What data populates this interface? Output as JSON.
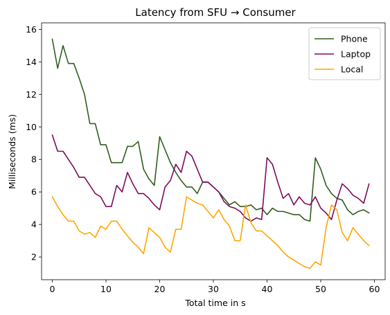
{
  "chart_data": {
    "type": "line",
    "title": "Latency from SFU → Consumer",
    "xlabel": "Total time in s",
    "ylabel": "Milliseconds (ms)",
    "xlim": [
      -2,
      62
    ],
    "ylim": [
      0.6,
      16.4
    ],
    "xticks": [
      0,
      10,
      20,
      30,
      40,
      50,
      60
    ],
    "yticks": [
      2,
      4,
      6,
      8,
      10,
      12,
      14,
      16
    ],
    "grid": false,
    "legend_position": "top-right",
    "x": [
      0,
      1,
      2,
      3,
      4,
      5,
      6,
      7,
      8,
      9,
      10,
      11,
      12,
      13,
      14,
      15,
      16,
      17,
      18,
      19,
      20,
      21,
      22,
      23,
      24,
      25,
      26,
      27,
      28,
      29,
      30,
      31,
      32,
      33,
      34,
      35,
      36,
      37,
      38,
      39,
      40,
      41,
      42,
      43,
      44,
      45,
      46,
      47,
      48,
      49,
      50,
      51,
      52,
      53,
      54,
      55,
      56,
      57,
      58,
      59
    ],
    "series": [
      {
        "name": "Phone",
        "color": "#2e5e1b",
        "values": [
          15.4,
          13.6,
          15.0,
          13.9,
          13.9,
          13.0,
          12.0,
          10.2,
          10.2,
          8.9,
          8.9,
          7.8,
          7.8,
          7.8,
          8.8,
          8.8,
          9.1,
          7.4,
          6.8,
          6.4,
          9.4,
          8.6,
          7.8,
          7.2,
          6.7,
          6.3,
          6.3,
          5.9,
          6.6,
          6.6,
          6.3,
          6.0,
          5.6,
          5.2,
          5.4,
          5.1,
          5.1,
          5.2,
          4.9,
          5.0,
          4.6,
          5.0,
          4.8,
          4.8,
          4.7,
          4.6,
          4.6,
          4.3,
          4.2,
          8.1,
          7.4,
          6.4,
          5.9,
          5.6,
          5.5,
          4.9,
          4.6,
          4.8,
          4.9,
          4.7
        ]
      },
      {
        "name": "Laptop",
        "color": "#7b0a5e",
        "values": [
          9.5,
          8.5,
          8.5,
          8.0,
          7.5,
          6.9,
          6.9,
          6.4,
          5.9,
          5.7,
          5.1,
          5.1,
          6.4,
          6.0,
          7.2,
          6.5,
          5.9,
          5.9,
          5.6,
          5.2,
          4.9,
          6.3,
          6.7,
          7.7,
          7.2,
          8.5,
          8.2,
          7.4,
          6.6,
          6.6,
          6.3,
          6.0,
          5.4,
          5.1,
          5.0,
          4.8,
          4.4,
          4.2,
          4.4,
          4.3,
          8.1,
          7.7,
          6.6,
          5.6,
          5.9,
          5.2,
          5.7,
          5.3,
          5.2,
          5.7,
          5.0,
          4.7,
          4.3,
          5.5,
          6.5,
          6.2,
          5.8,
          5.6,
          5.3,
          6.5
        ]
      },
      {
        "name": "Local",
        "color": "#ffa500",
        "values": [
          5.7,
          5.1,
          4.6,
          4.2,
          4.2,
          3.6,
          3.4,
          3.5,
          3.2,
          3.9,
          3.7,
          4.2,
          4.2,
          3.7,
          3.3,
          2.9,
          2.6,
          2.2,
          3.8,
          3.5,
          3.2,
          2.6,
          2.3,
          3.7,
          3.7,
          5.7,
          5.5,
          5.3,
          5.2,
          4.8,
          4.4,
          4.9,
          4.3,
          3.9,
          3.0,
          3.0,
          5.2,
          4.1,
          3.6,
          3.6,
          3.3,
          3.0,
          2.7,
          2.3,
          2.0,
          1.8,
          1.6,
          1.4,
          1.3,
          1.7,
          1.5,
          3.8,
          5.2,
          4.9,
          3.5,
          3.0,
          3.8,
          3.4,
          3.0,
          2.7
        ]
      }
    ]
  }
}
